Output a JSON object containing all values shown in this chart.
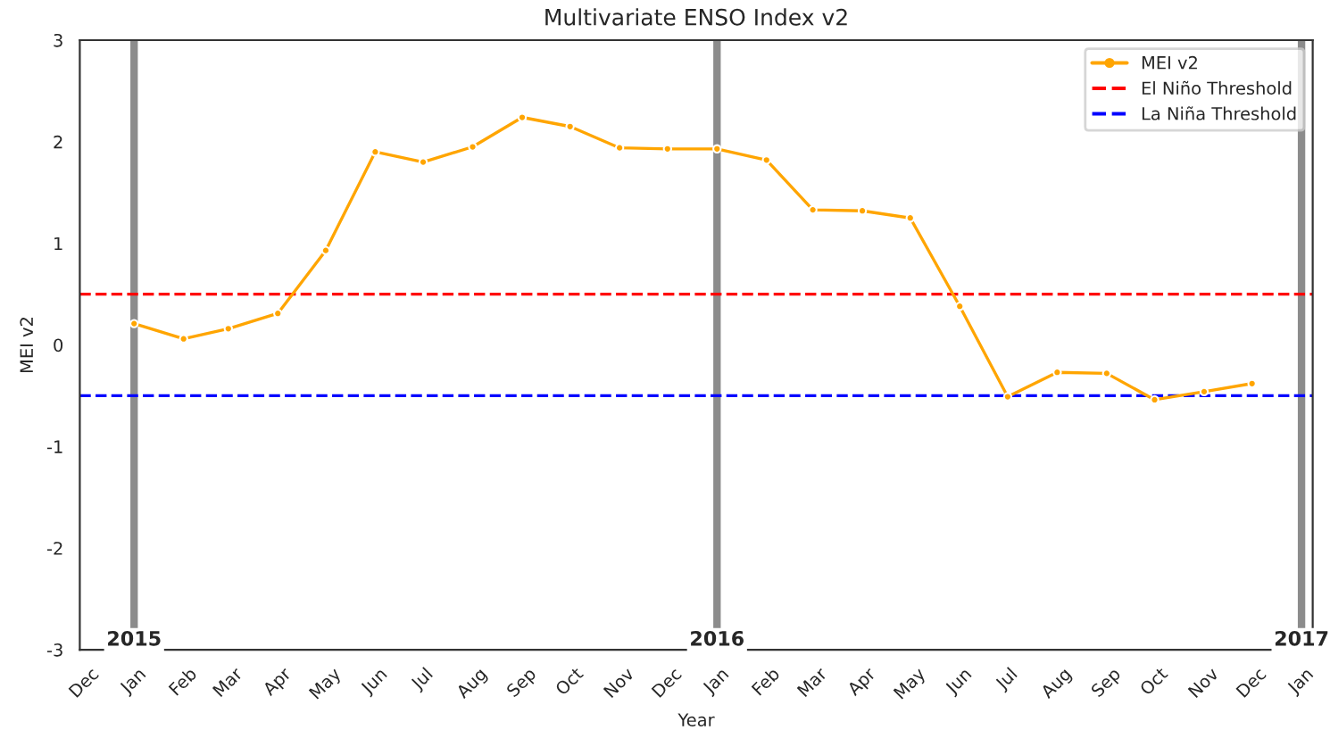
{
  "chart_data": {
    "type": "line",
    "title": "Multivariate ENSO Index v2",
    "xlabel": "Year",
    "ylabel": "MEI v2",
    "x": [
      "2015-01",
      "2015-02",
      "2015-03",
      "2015-04",
      "2015-05",
      "2015-06",
      "2015-07",
      "2015-08",
      "2015-09",
      "2015-10",
      "2015-11",
      "2015-12",
      "2016-01",
      "2016-02",
      "2016-03",
      "2016-04",
      "2016-05",
      "2016-06",
      "2016-07",
      "2016-08",
      "2016-09",
      "2016-10",
      "2016-11",
      "2016-12"
    ],
    "series": [
      {
        "name": "MEI v2",
        "color": "#ffa500",
        "values": [
          0.21,
          0.06,
          0.16,
          0.31,
          0.93,
          1.9,
          1.8,
          1.95,
          2.24,
          2.15,
          1.94,
          1.93,
          1.93,
          1.82,
          1.33,
          1.32,
          1.25,
          0.38,
          -0.51,
          -0.27,
          -0.28,
          -0.54,
          -0.46,
          -0.38
        ]
      }
    ],
    "marker": "circle",
    "line_style": "solid",
    "legend": "top right",
    "grid": false,
    "ylim": [
      -3,
      3
    ],
    "yticks": [
      -3,
      -2,
      -1,
      0,
      1,
      2,
      3
    ],
    "xlim": [
      "2014-11-28",
      "2017-01-08"
    ],
    "xticks": [
      {
        "value": "2014-12",
        "label": "Dec"
      },
      {
        "value": "2015-01",
        "label": "Jan"
      },
      {
        "value": "2015-02",
        "label": "Feb"
      },
      {
        "value": "2015-03",
        "label": "Mar"
      },
      {
        "value": "2015-04",
        "label": "Apr"
      },
      {
        "value": "2015-05",
        "label": "May"
      },
      {
        "value": "2015-06",
        "label": "Jun"
      },
      {
        "value": "2015-07",
        "label": "Jul"
      },
      {
        "value": "2015-08",
        "label": "Aug"
      },
      {
        "value": "2015-09",
        "label": "Sep"
      },
      {
        "value": "2015-10",
        "label": "Oct"
      },
      {
        "value": "2015-11",
        "label": "Nov"
      },
      {
        "value": "2015-12",
        "label": "Dec"
      },
      {
        "value": "2016-01",
        "label": "Jan"
      },
      {
        "value": "2016-02",
        "label": "Feb"
      },
      {
        "value": "2016-03",
        "label": "Mar"
      },
      {
        "value": "2016-04",
        "label": "Apr"
      },
      {
        "value": "2016-05",
        "label": "May"
      },
      {
        "value": "2016-06",
        "label": "Jun"
      },
      {
        "value": "2016-07",
        "label": "Jul"
      },
      {
        "value": "2016-08",
        "label": "Aug"
      },
      {
        "value": "2016-09",
        "label": "Sep"
      },
      {
        "value": "2016-10",
        "label": "Oct"
      },
      {
        "value": "2016-11",
        "label": "Nov"
      },
      {
        "value": "2016-12",
        "label": "Dec"
      },
      {
        "value": "2017-01",
        "label": "Jan"
      }
    ],
    "ref_lines": [
      {
        "axis": "y",
        "value": 0.5,
        "label": "El Niño Threshold",
        "color": "#ff0000",
        "line_style": "dashed"
      },
      {
        "axis": "y",
        "value": -0.5,
        "label": "La Niña Threshold",
        "color": "#0000ff",
        "line_style": "dashed"
      },
      {
        "axis": "x",
        "value": "2015-01",
        "label": "2015",
        "color": "#808080",
        "line_style": "solid"
      },
      {
        "axis": "x",
        "value": "2016-01",
        "label": "2016",
        "color": "#808080",
        "line_style": "solid"
      },
      {
        "axis": "x",
        "value": "2017-01",
        "label": "2017",
        "color": "#808080",
        "line_style": "solid"
      }
    ]
  }
}
